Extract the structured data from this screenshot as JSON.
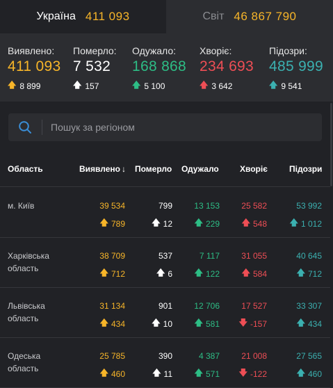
{
  "tabs": [
    {
      "name": "Україна",
      "value": "411 093"
    },
    {
      "name": "Світ",
      "value": "46 867 790"
    }
  ],
  "summary": [
    {
      "label": "Виявлено:",
      "value": "411 093",
      "delta": "8 899",
      "direction": "up",
      "color": "#f7b529"
    },
    {
      "label": "Померло:",
      "value": "7 532",
      "delta": "157",
      "direction": "up",
      "color": "#ffffff"
    },
    {
      "label": "Одужало:",
      "value": "168 868",
      "delta": "5 100",
      "direction": "up",
      "color": "#2dbd85"
    },
    {
      "label": "Хворіє:",
      "value": "234 693",
      "delta": "3 642",
      "direction": "up",
      "color": "#ee4e55"
    },
    {
      "label": "Підозри:",
      "value": "485 999",
      "delta": "9 541",
      "direction": "up",
      "color": "#3bb0b0"
    }
  ],
  "search": {
    "placeholder": "Пошук за регіоном",
    "icon": "search-icon"
  },
  "table": {
    "headers": {
      "region": "Область",
      "confirmed": "Виявлено",
      "sort_icon": "↓",
      "deaths": "Померло",
      "recovered": "Одужало",
      "sick": "Хворіє",
      "suspected": "Підозри"
    },
    "rows": [
      {
        "region": "м. Київ",
        "confirmed": "39 534",
        "confirmed_delta": "789",
        "deaths": "799",
        "deaths_delta": "12",
        "recovered": "13 153",
        "recovered_delta": "229",
        "sick": "25 582",
        "sick_delta": "548",
        "suspected": "53 992",
        "suspected_delta": "1 012"
      },
      {
        "region": "Харківська область",
        "confirmed": "38 709",
        "confirmed_delta": "712",
        "deaths": "537",
        "deaths_delta": "6",
        "recovered": "7 117",
        "recovered_delta": "122",
        "sick": "31 055",
        "sick_delta": "584",
        "suspected": "40 645",
        "suspected_delta": "712"
      },
      {
        "region": "Львівська область",
        "confirmed": "31 134",
        "confirmed_delta": "434",
        "deaths": "901",
        "deaths_delta": "10",
        "recovered": "12 706",
        "recovered_delta": "581",
        "sick": "17 527",
        "sick_delta": "-157",
        "suspected": "33 307",
        "suspected_delta": "434"
      },
      {
        "region": "Одеська область",
        "confirmed": "25 785",
        "confirmed_delta": "460",
        "deaths": "390",
        "deaths_delta": "11",
        "recovered": "4 387",
        "recovered_delta": "571",
        "sick": "21 008",
        "sick_delta": "-122",
        "suspected": "27 565",
        "suspected_delta": "460"
      }
    ]
  }
}
